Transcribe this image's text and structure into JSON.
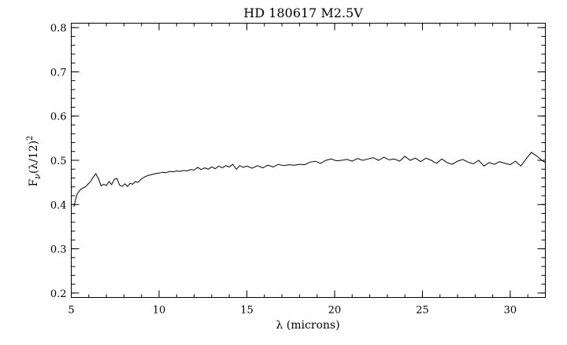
{
  "chart_data": {
    "type": "line",
    "title": "HD 180617 M2.5V",
    "xlabel": "λ (microns)",
    "ylabel_main": "F",
    "ylabel_sub": "ν",
    "ylabel_rest": "(λ/12)",
    "ylabel_sup": "2",
    "xlim": [
      5,
      32
    ],
    "ylim": [
      0.19,
      0.81
    ],
    "xticks": [
      5,
      10,
      15,
      20,
      25,
      30
    ],
    "xtick_labels": [
      "5",
      "10",
      "15",
      "20",
      "25",
      "30"
    ],
    "xminor_step": 1,
    "yticks": [
      0.2,
      0.3,
      0.4,
      0.5,
      0.6,
      0.7,
      0.8
    ],
    "ytick_labels": [
      "0.2",
      "0.3",
      "0.4",
      "0.5",
      "0.6",
      "0.7",
      "0.8"
    ],
    "yminor_step": 0.02,
    "grid": false,
    "legend": "none",
    "series": [
      {
        "x": [
          5.15,
          5.25,
          5.35,
          5.45,
          5.55,
          5.65,
          5.8,
          5.95,
          6.1,
          6.25,
          6.4,
          6.55,
          6.7,
          6.85,
          7.0,
          7.15,
          7.3,
          7.45,
          7.6,
          7.75,
          7.9,
          8.05,
          8.2,
          8.35,
          8.5,
          8.65,
          8.8,
          9.0,
          9.2,
          9.4,
          9.6,
          9.8,
          10.0,
          10.2,
          10.4,
          10.6,
          10.8,
          11.0,
          11.2,
          11.4,
          11.6,
          11.8,
          12.0,
          12.2,
          12.4,
          12.6,
          12.8,
          13.0,
          13.2,
          13.4,
          13.6,
          13.8,
          14.0,
          14.2,
          14.4,
          14.6,
          14.8,
          15.0,
          15.3,
          15.6,
          15.9,
          16.2,
          16.5,
          16.8,
          17.1,
          17.4,
          17.7,
          18.0,
          18.3,
          18.6,
          18.9,
          19.2,
          19.5,
          19.8,
          20.1,
          20.4,
          20.7,
          21.0,
          21.3,
          21.6,
          21.9,
          22.2,
          22.5,
          22.8,
          23.1,
          23.4,
          23.7,
          24.0,
          24.3,
          24.6,
          24.9,
          25.2,
          25.5,
          25.8,
          26.1,
          26.4,
          26.7,
          27.0,
          27.3,
          27.6,
          27.9,
          28.2,
          28.5,
          28.8,
          29.1,
          29.4,
          29.7,
          30.0,
          30.3,
          30.6,
          30.9,
          31.2,
          31.5,
          31.8,
          32.0
        ],
        "y": [
          0.395,
          0.412,
          0.425,
          0.43,
          0.435,
          0.437,
          0.44,
          0.446,
          0.452,
          0.462,
          0.47,
          0.458,
          0.442,
          0.446,
          0.443,
          0.452,
          0.445,
          0.457,
          0.459,
          0.444,
          0.441,
          0.447,
          0.441,
          0.448,
          0.446,
          0.452,
          0.45,
          0.458,
          0.463,
          0.466,
          0.468,
          0.47,
          0.471,
          0.473,
          0.472,
          0.475,
          0.474,
          0.476,
          0.475,
          0.477,
          0.476,
          0.479,
          0.478,
          0.484,
          0.479,
          0.483,
          0.48,
          0.485,
          0.481,
          0.487,
          0.483,
          0.488,
          0.485,
          0.491,
          0.48,
          0.488,
          0.484,
          0.487,
          0.482,
          0.488,
          0.483,
          0.489,
          0.485,
          0.491,
          0.488,
          0.49,
          0.489,
          0.491,
          0.49,
          0.496,
          0.498,
          0.493,
          0.5,
          0.503,
          0.499,
          0.5,
          0.502,
          0.498,
          0.504,
          0.5,
          0.503,
          0.506,
          0.5,
          0.507,
          0.501,
          0.503,
          0.498,
          0.509,
          0.5,
          0.505,
          0.497,
          0.505,
          0.5,
          0.493,
          0.503,
          0.495,
          0.491,
          0.498,
          0.502,
          0.496,
          0.492,
          0.5,
          0.487,
          0.495,
          0.491,
          0.497,
          0.493,
          0.49,
          0.498,
          0.487,
          0.503,
          0.518,
          0.51,
          0.5,
          0.495
        ]
      }
    ]
  }
}
